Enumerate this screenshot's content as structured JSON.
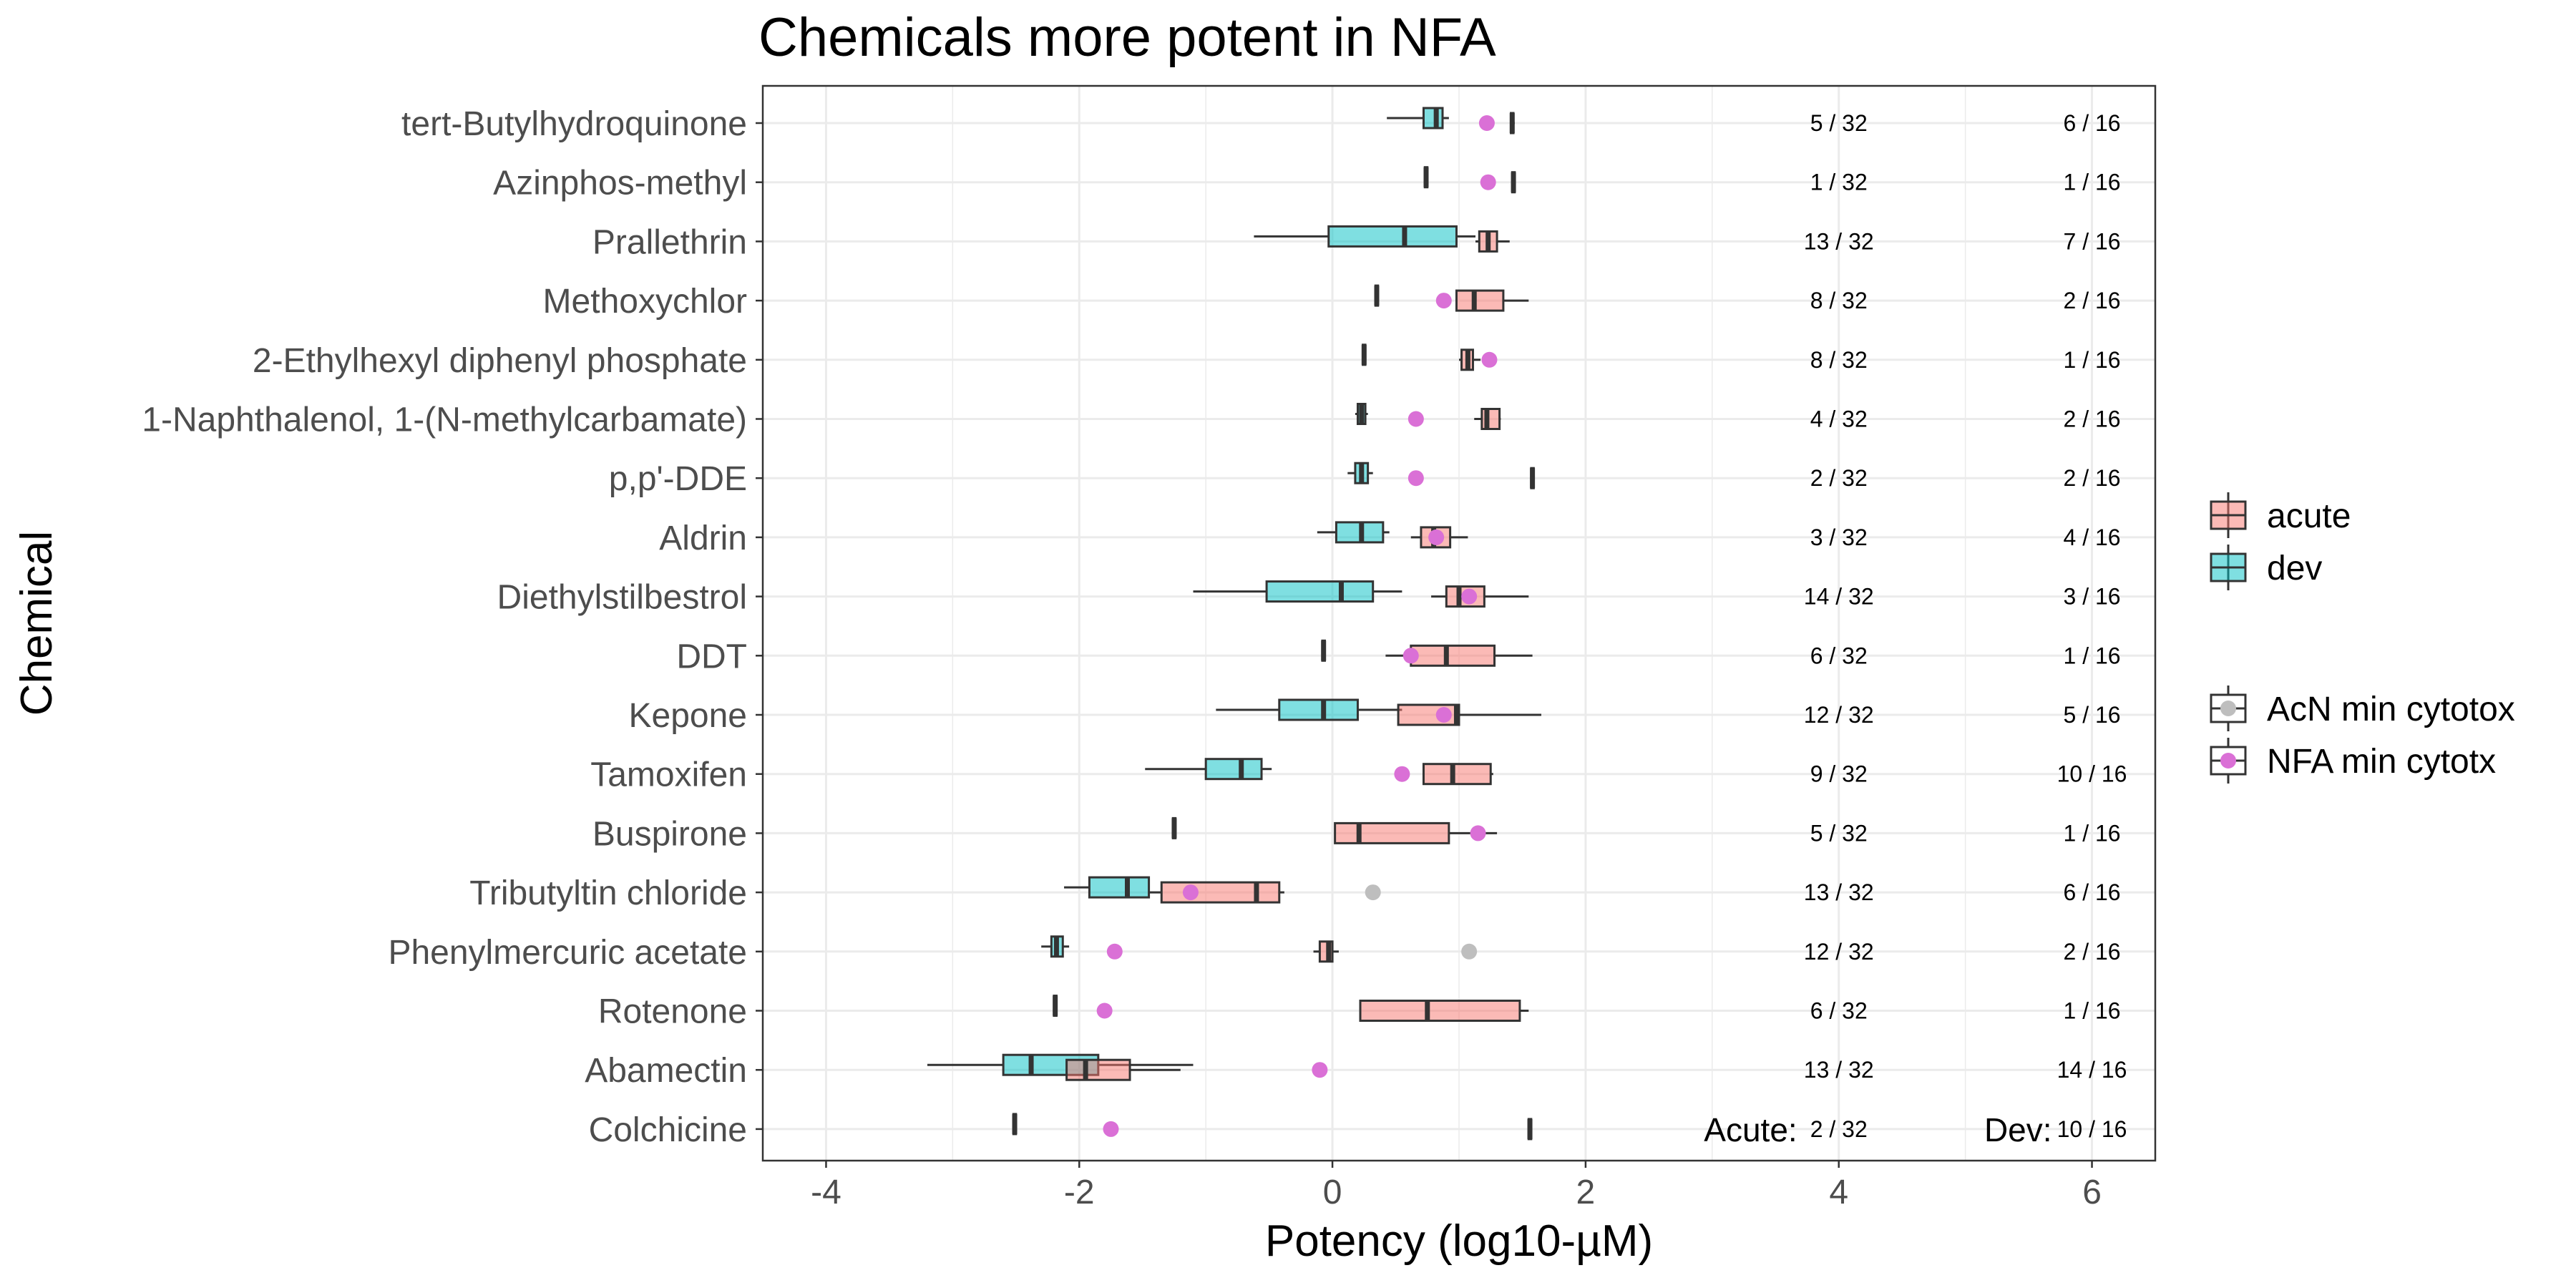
{
  "chart_data": {
    "type": "boxplot",
    "title": "Chemicals more potent in NFA",
    "xlabel": "Potency (log10-µM)",
    "ylabel": "Chemical",
    "xlim": [
      -4.5,
      6.5
    ],
    "x_ticks": [
      -4,
      -2,
      0,
      2,
      4,
      6
    ],
    "x_tick_labels": [
      "-4",
      "-2",
      "0",
      "2",
      "4",
      "6"
    ],
    "grid": true,
    "legend_position": "right",
    "legend_fill": [
      {
        "label": "acute",
        "color": "#F8766D"
      },
      {
        "label": "dev",
        "color": "#00BFC4"
      }
    ],
    "legend_points": [
      {
        "label": "AcN min cytotox",
        "color": "#BEBEBE"
      },
      {
        "label": "NFA min cytotx",
        "color": "#DA70D6"
      }
    ],
    "annotations": {
      "acute_label": "Acute:",
      "dev_label": "Dev:"
    },
    "chemicals": [
      {
        "name": "tert-Butylhydroquinone",
        "acute": {
          "min": 1.41,
          "q1": 1.41,
          "median": 1.42,
          "q3": 1.43,
          "max": 1.44
        },
        "dev": {
          "min": 0.43,
          "q1": 0.72,
          "median": 0.82,
          "q3": 0.87,
          "max": 0.92
        },
        "cytotox": [
          {
            "source": "NFA",
            "x": 1.22
          }
        ],
        "acute_count": "5 / 32",
        "dev_count": "6 / 16"
      },
      {
        "name": "Azinphos-methyl",
        "acute": {
          "min": 1.42,
          "q1": 1.42,
          "median": 1.43,
          "q3": 1.44,
          "max": 1.44
        },
        "dev": {
          "min": 0.73,
          "q1": 0.73,
          "median": 0.74,
          "q3": 0.75,
          "max": 0.75
        },
        "cytotox": [
          {
            "source": "NFA",
            "x": 1.23
          }
        ],
        "acute_count": "1 / 32",
        "dev_count": "1 / 16"
      },
      {
        "name": "Prallethrin",
        "acute": {
          "min": 1.13,
          "q1": 1.16,
          "median": 1.23,
          "q3": 1.3,
          "max": 1.4
        },
        "dev": {
          "min": -0.62,
          "q1": -0.03,
          "median": 0.57,
          "q3": 0.98,
          "max": 1.13
        },
        "cytotox": [],
        "acute_count": "13 / 32",
        "dev_count": "7 / 16"
      },
      {
        "name": "Methoxychlor",
        "acute": {
          "min": 0.98,
          "q1": 0.98,
          "median": 1.12,
          "q3": 1.35,
          "max": 1.55
        },
        "dev": {
          "min": 0.34,
          "q1": 0.34,
          "median": 0.35,
          "q3": 0.36,
          "max": 0.36
        },
        "cytotox": [
          {
            "source": "NFA",
            "x": 0.88
          }
        ],
        "acute_count": "8 / 32",
        "dev_count": "2 / 16"
      },
      {
        "name": "2-Ethylhexyl diphenyl phosphate",
        "acute": {
          "min": 1.0,
          "q1": 1.02,
          "median": 1.07,
          "q3": 1.11,
          "max": 1.17
        },
        "dev": {
          "min": 0.24,
          "q1": 0.24,
          "median": 0.25,
          "q3": 0.26,
          "max": 0.26
        },
        "cytotox": [
          {
            "source": "NFA",
            "x": 1.24
          }
        ],
        "acute_count": "8 / 32",
        "dev_count": "1 / 16"
      },
      {
        "name": "1-Naphthalenol, 1-(N-methylcarbamate)",
        "acute": {
          "min": 1.12,
          "q1": 1.18,
          "median": 1.22,
          "q3": 1.32,
          "max": 1.33
        },
        "dev": {
          "min": 0.18,
          "q1": 0.2,
          "median": 0.23,
          "q3": 0.26,
          "max": 0.28
        },
        "cytotox": [
          {
            "source": "NFA",
            "x": 0.66
          }
        ],
        "acute_count": "4 / 32",
        "dev_count": "2 / 16"
      },
      {
        "name": "p,p'-DDE",
        "acute": {
          "min": 1.57,
          "q1": 1.57,
          "median": 1.58,
          "q3": 1.59,
          "max": 1.59
        },
        "dev": {
          "min": 0.12,
          "q1": 0.18,
          "median": 0.23,
          "q3": 0.28,
          "max": 0.32
        },
        "cytotox": [
          {
            "source": "NFA",
            "x": 0.66
          }
        ],
        "acute_count": "2 / 32",
        "dev_count": "2 / 16"
      },
      {
        "name": "Aldrin",
        "acute": {
          "min": 0.62,
          "q1": 0.7,
          "median": 0.8,
          "q3": 0.93,
          "max": 1.07
        },
        "dev": {
          "min": -0.12,
          "q1": 0.03,
          "median": 0.23,
          "q3": 0.4,
          "max": 0.45
        },
        "cytotox": [
          {
            "source": "NFA",
            "x": 0.82
          }
        ],
        "acute_count": "3 / 32",
        "dev_count": "4 / 16"
      },
      {
        "name": "Diethylstilbestrol",
        "acute": {
          "min": 0.78,
          "q1": 0.9,
          "median": 1.0,
          "q3": 1.2,
          "max": 1.55
        },
        "dev": {
          "min": -1.1,
          "q1": -0.52,
          "median": 0.07,
          "q3": 0.32,
          "max": 0.55
        },
        "cytotox": [
          {
            "source": "NFA",
            "x": 1.08
          }
        ],
        "acute_count": "14 / 32",
        "dev_count": "3 / 16"
      },
      {
        "name": "DDT",
        "acute": {
          "min": 0.42,
          "q1": 0.62,
          "median": 0.9,
          "q3": 1.28,
          "max": 1.58
        },
        "dev": {
          "min": -0.08,
          "q1": -0.08,
          "median": -0.07,
          "q3": -0.06,
          "max": -0.06
        },
        "cytotox": [
          {
            "source": "NFA",
            "x": 0.62
          }
        ],
        "acute_count": "6 / 32",
        "dev_count": "1 / 16"
      },
      {
        "name": "Kepone",
        "acute": {
          "min": 0.52,
          "q1": 0.52,
          "median": 0.98,
          "q3": 1.0,
          "max": 1.65
        },
        "dev": {
          "min": -0.92,
          "q1": -0.42,
          "median": -0.07,
          "q3": 0.2,
          "max": 0.55
        },
        "cytotox": [
          {
            "source": "NFA",
            "x": 0.88
          }
        ],
        "acute_count": "12 / 32",
        "dev_count": "5 / 16"
      },
      {
        "name": "Tamoxifen",
        "acute": {
          "min": 0.72,
          "q1": 0.72,
          "median": 0.95,
          "q3": 1.25,
          "max": 1.27
        },
        "dev": {
          "min": -1.48,
          "q1": -1.0,
          "median": -0.72,
          "q3": -0.56,
          "max": -0.48
        },
        "cytotox": [
          {
            "source": "NFA",
            "x": 0.55
          }
        ],
        "acute_count": "9 / 32",
        "dev_count": "10 / 16"
      },
      {
        "name": "Buspirone",
        "acute": {
          "min": 0.02,
          "q1": 0.02,
          "median": 0.21,
          "q3": 0.92,
          "max": 1.3
        },
        "dev": {
          "min": -1.26,
          "q1": -1.26,
          "median": -1.25,
          "q3": -1.24,
          "max": -1.24
        },
        "cytotox": [
          {
            "source": "NFA",
            "x": 1.15
          }
        ],
        "acute_count": "5 / 32",
        "dev_count": "1 / 16"
      },
      {
        "name": "Tributyltin chloride",
        "acute": {
          "min": -1.45,
          "q1": -1.35,
          "median": -0.6,
          "q3": -0.42,
          "max": -0.38
        },
        "dev": {
          "min": -2.12,
          "q1": -1.92,
          "median": -1.62,
          "q3": -1.45,
          "max": -1.45
        },
        "cytotox": [
          {
            "source": "NFA",
            "x": -1.12
          },
          {
            "source": "AcN",
            "x": 0.32
          }
        ],
        "acute_count": "13 / 32",
        "dev_count": "6 / 16"
      },
      {
        "name": "Phenylmercuric acetate",
        "acute": {
          "min": -0.15,
          "q1": -0.1,
          "median": -0.03,
          "q3": 0.0,
          "max": 0.05
        },
        "dev": {
          "min": -2.3,
          "q1": -2.22,
          "median": -2.18,
          "q3": -2.13,
          "max": -2.08
        },
        "cytotox": [
          {
            "source": "NFA",
            "x": -1.72
          },
          {
            "source": "AcN",
            "x": 1.08
          }
        ],
        "acute_count": "12 / 32",
        "dev_count": "2 / 16"
      },
      {
        "name": "Rotenone",
        "acute": {
          "min": 0.22,
          "q1": 0.22,
          "median": 0.75,
          "q3": 1.48,
          "max": 1.55
        },
        "dev": {
          "min": -2.2,
          "q1": -2.2,
          "median": -2.19,
          "q3": -2.18,
          "max": -2.18
        },
        "cytotox": [
          {
            "source": "NFA",
            "x": -1.8
          }
        ],
        "acute_count": "6 / 32",
        "dev_count": "1 / 16"
      },
      {
        "name": "Abamectin",
        "acute": {
          "min": -2.1,
          "q1": -2.1,
          "median": -1.95,
          "q3": -1.6,
          "max": -1.2
        },
        "dev": {
          "min": -3.2,
          "q1": -2.6,
          "median": -2.38,
          "q3": -1.85,
          "max": -1.1
        },
        "cytotox": [
          {
            "source": "NFA",
            "x": -0.1
          }
        ],
        "acute_count": "13 / 32",
        "dev_count": "14 / 16"
      },
      {
        "name": "Colchicine",
        "acute": {
          "min": 1.55,
          "q1": 1.55,
          "median": 1.56,
          "q3": 1.57,
          "max": 1.57
        },
        "dev": {
          "min": -2.52,
          "q1": -2.52,
          "median": -2.51,
          "q3": -2.5,
          "max": -2.5
        },
        "cytotox": [
          {
            "source": "NFA",
            "x": -1.75
          }
        ],
        "acute_count": "2 / 32",
        "dev_count": "10 / 16"
      }
    ]
  }
}
